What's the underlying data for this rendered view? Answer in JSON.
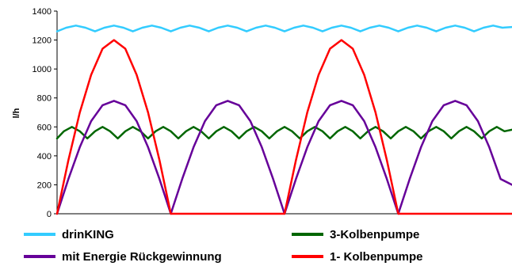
{
  "chart_data": {
    "type": "line",
    "title": "",
    "xlabel": "",
    "ylabel": "l/h",
    "ylim": [
      0,
      1400
    ],
    "yticks": [
      "0",
      "200",
      "400",
      "600",
      "800",
      "1000",
      "1200",
      "1400"
    ],
    "xlim": [
      0,
      2
    ],
    "grid": false,
    "legend_position": "bottom",
    "series": [
      {
        "name": "drinKING",
        "color": "#33CCFF",
        "x": [
          0,
          0.04,
          0.083,
          0.125,
          0.167,
          0.208,
          0.25,
          0.292,
          0.333,
          0.375,
          0.417,
          0.458,
          0.5,
          0.542,
          0.583,
          0.625,
          0.667,
          0.708,
          0.75,
          0.792,
          0.833,
          0.875,
          0.917,
          0.958,
          1.0,
          1.042,
          1.083,
          1.125,
          1.167,
          1.208,
          1.25,
          1.292,
          1.333,
          1.375,
          1.417,
          1.458,
          1.5,
          1.542,
          1.583,
          1.625,
          1.667,
          1.708,
          1.75,
          1.792,
          1.833,
          1.875,
          1.917,
          1.958,
          2.0
        ],
        "y": [
          1260,
          1285,
          1300,
          1285,
          1260,
          1285,
          1300,
          1285,
          1260,
          1285,
          1300,
          1285,
          1260,
          1285,
          1300,
          1285,
          1260,
          1285,
          1300,
          1285,
          1260,
          1285,
          1300,
          1285,
          1260,
          1285,
          1300,
          1285,
          1260,
          1285,
          1300,
          1285,
          1260,
          1285,
          1300,
          1285,
          1260,
          1285,
          1300,
          1285,
          1260,
          1285,
          1300,
          1285,
          1260,
          1285,
          1300,
          1285,
          1290
        ]
      },
      {
        "name": "3-Kolbenpumpe",
        "color": "#006600",
        "x": [
          0,
          0.03,
          0.065,
          0.1,
          0.133,
          0.167,
          0.2,
          0.233,
          0.267,
          0.3,
          0.333,
          0.367,
          0.4,
          0.433,
          0.467,
          0.5,
          0.533,
          0.567,
          0.6,
          0.633,
          0.667,
          0.7,
          0.733,
          0.767,
          0.8,
          0.833,
          0.867,
          0.9,
          0.933,
          0.967,
          1.0,
          1.033,
          1.067,
          1.1,
          1.133,
          1.167,
          1.2,
          1.233,
          1.267,
          1.3,
          1.333,
          1.367,
          1.4,
          1.433,
          1.467,
          1.5,
          1.533,
          1.567,
          1.6,
          1.633,
          1.667,
          1.7,
          1.733,
          1.767,
          1.8,
          1.833,
          1.867,
          1.9,
          1.933,
          1.967,
          2.0
        ],
        "y": [
          520,
          570,
          600,
          570,
          520,
          570,
          600,
          570,
          520,
          570,
          600,
          570,
          520,
          570,
          600,
          570,
          520,
          570,
          600,
          570,
          520,
          570,
          600,
          570,
          520,
          570,
          600,
          570,
          520,
          570,
          600,
          570,
          520,
          570,
          600,
          570,
          520,
          570,
          600,
          570,
          520,
          570,
          600,
          570,
          520,
          570,
          600,
          570,
          520,
          570,
          600,
          570,
          520,
          570,
          600,
          570,
          520,
          570,
          600,
          570,
          580
        ]
      },
      {
        "name": "mit Energie Rückgewinnung",
        "color": "#660099",
        "x": [
          0,
          0.05,
          0.1,
          0.15,
          0.2,
          0.25,
          0.3,
          0.35,
          0.4,
          0.45,
          0.5,
          0.55,
          0.6,
          0.65,
          0.7,
          0.75,
          0.8,
          0.85,
          0.9,
          0.95,
          1.0,
          1.05,
          1.1,
          1.15,
          1.2,
          1.25,
          1.3,
          1.35,
          1.4,
          1.45,
          1.5,
          1.55,
          1.6,
          1.65,
          1.7,
          1.75,
          1.8,
          1.85,
          1.9,
          1.95,
          2.0
        ],
        "y": [
          0,
          240,
          460,
          640,
          750,
          780,
          750,
          640,
          460,
          240,
          0,
          240,
          460,
          640,
          750,
          780,
          750,
          640,
          460,
          240,
          0,
          240,
          460,
          640,
          750,
          780,
          750,
          640,
          460,
          240,
          0,
          240,
          460,
          640,
          750,
          780,
          750,
          640,
          460,
          240,
          200
        ]
      },
      {
        "name": "1- Kolbenpumpe",
        "color": "#FF0000",
        "x": [
          0,
          0.05,
          0.1,
          0.15,
          0.2,
          0.25,
          0.3,
          0.35,
          0.4,
          0.45,
          0.5,
          0.52,
          0.6,
          0.7,
          0.8,
          0.9,
          1.0,
          1.05,
          1.1,
          1.15,
          1.2,
          1.25,
          1.3,
          1.35,
          1.4,
          1.45,
          1.5,
          1.52,
          1.6,
          1.7,
          1.8,
          1.9,
          2.0
        ],
        "y": [
          0,
          370,
          700,
          960,
          1140,
          1200,
          1140,
          960,
          700,
          370,
          0,
          0,
          0,
          0,
          0,
          0,
          0,
          370,
          700,
          960,
          1140,
          1200,
          1140,
          960,
          700,
          370,
          0,
          0,
          0,
          0,
          0,
          0,
          0
        ]
      }
    ]
  }
}
